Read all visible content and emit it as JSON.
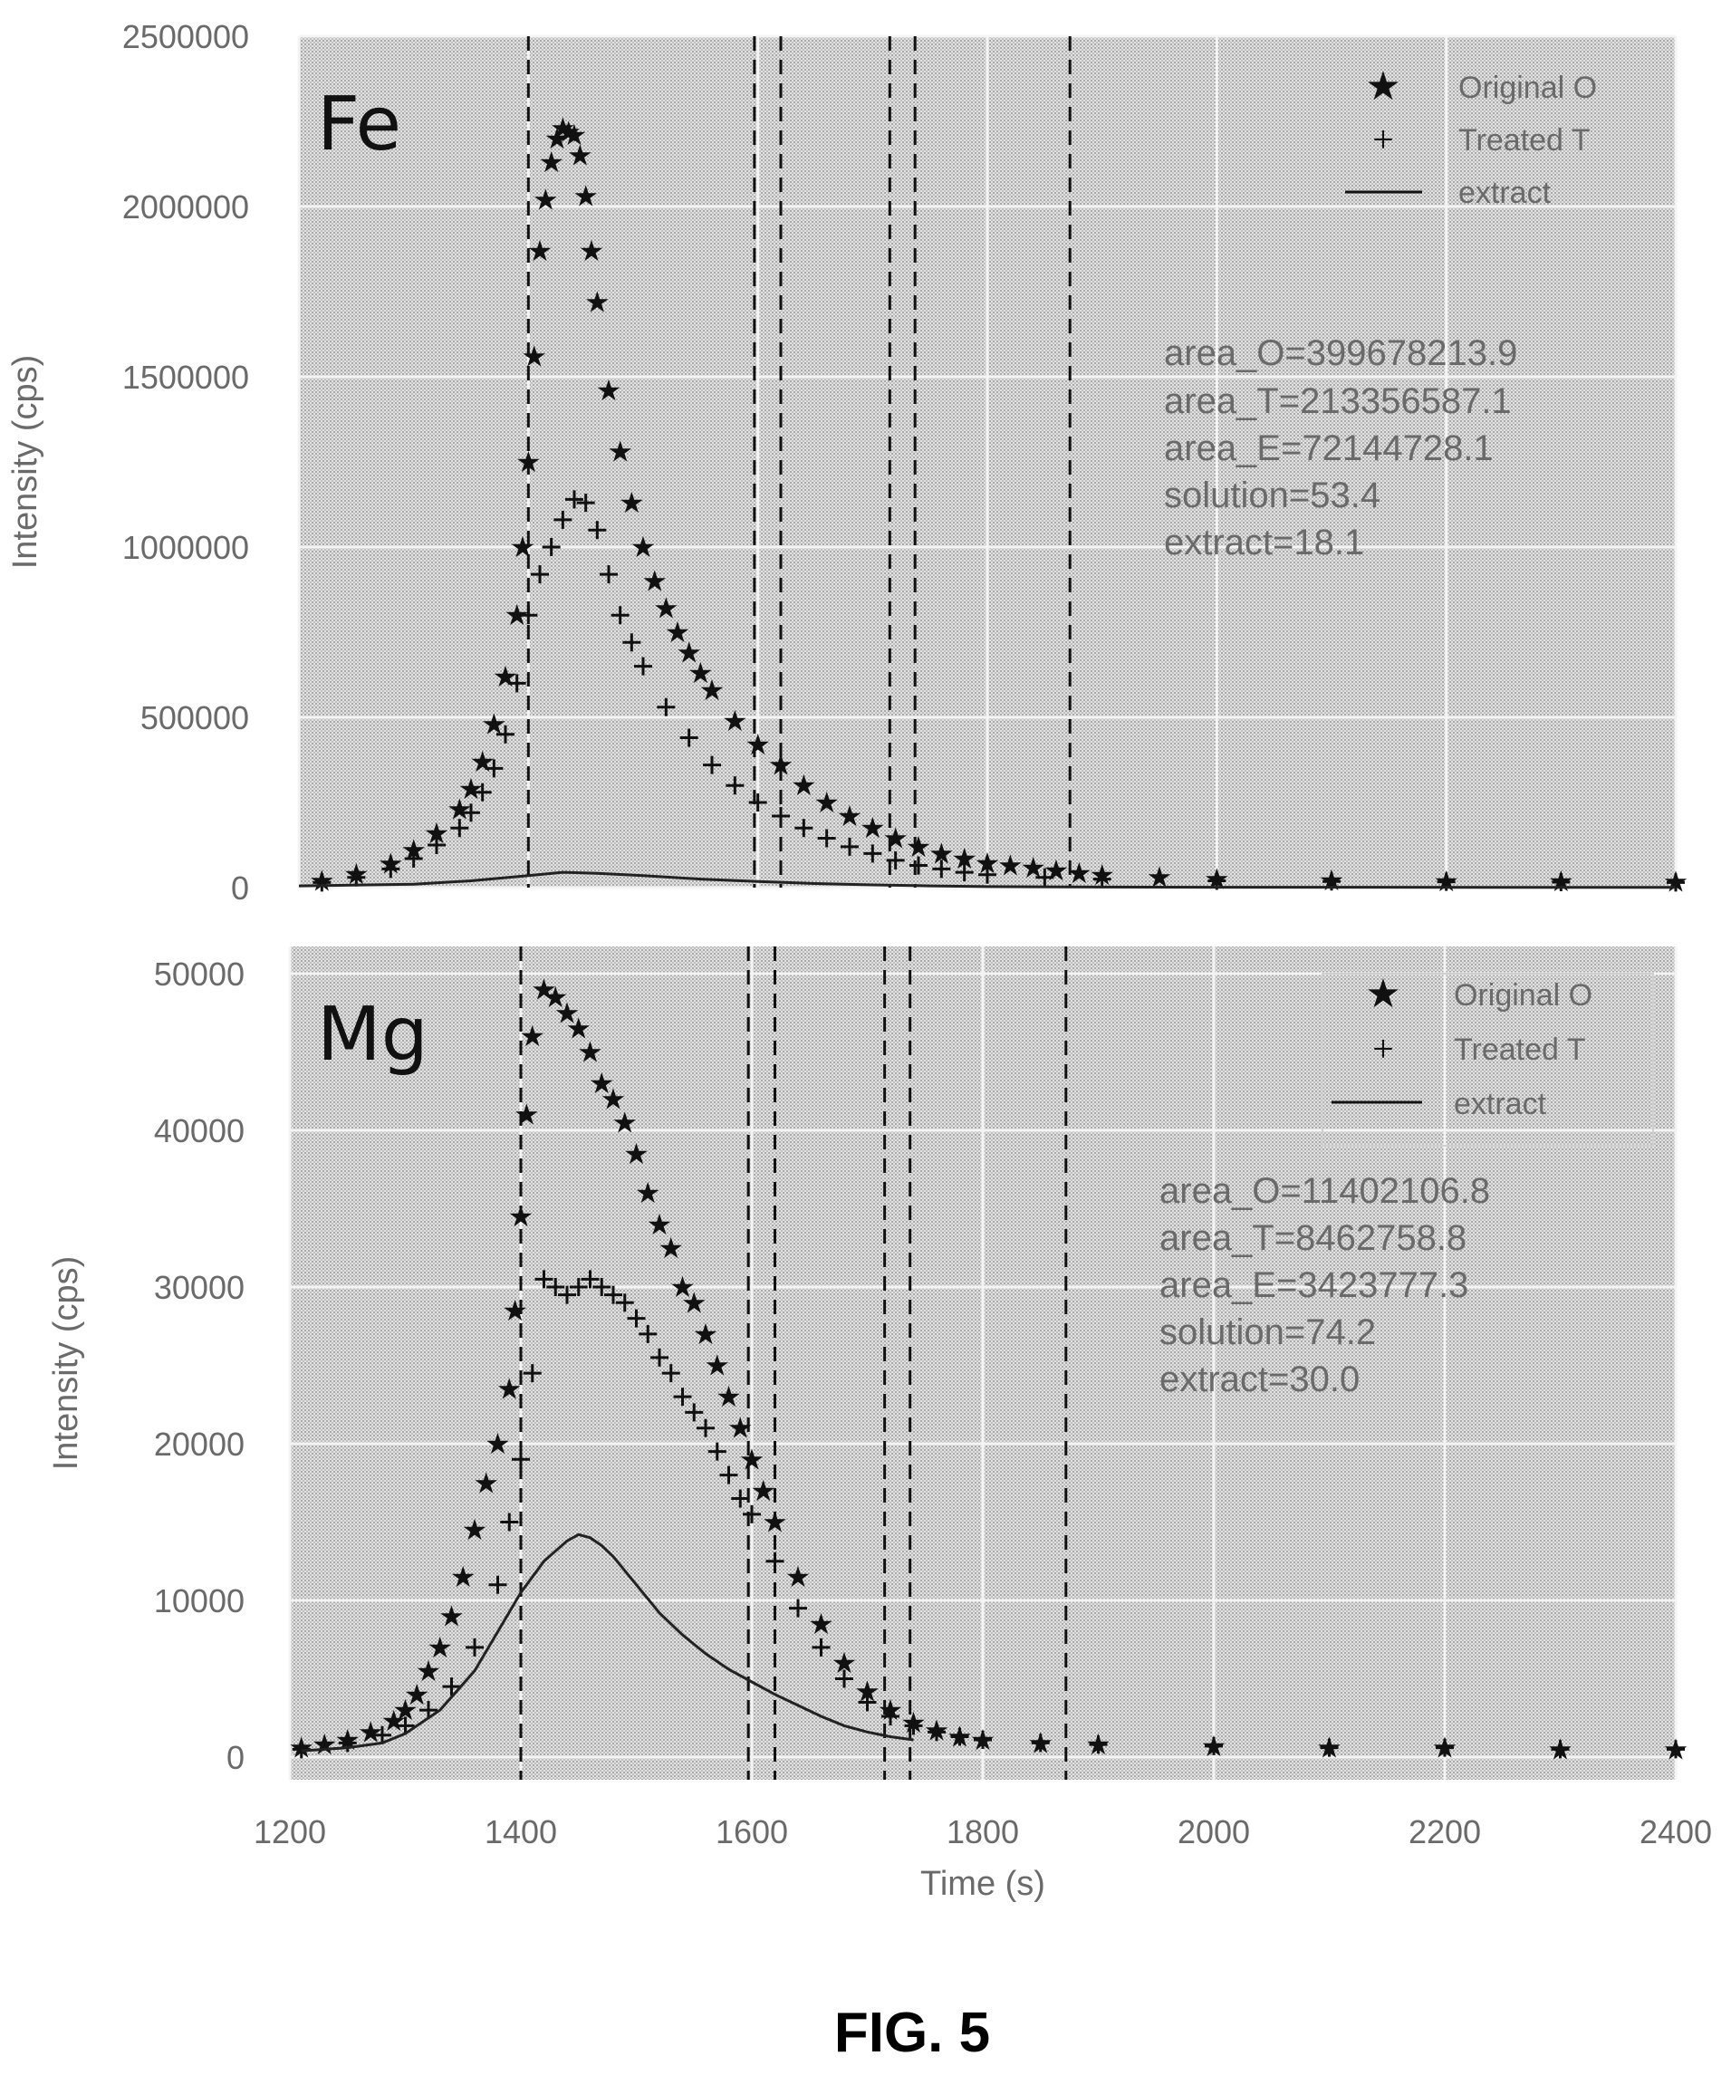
{
  "figure_caption": "FIG. 5",
  "shared_x_axis": {
    "label": "Time (s)",
    "ticks": [
      "1200",
      "1400",
      "1600",
      "1800",
      "2000",
      "2200",
      "2400"
    ]
  },
  "chart_data": [
    {
      "type": "scatter",
      "panel_label": "Fe",
      "xlabel": "Time (s)",
      "ylabel": "Intensity (cps)",
      "xlim": [
        1200,
        2400
      ],
      "ylim": [
        0,
        2500000
      ],
      "grid": true,
      "legend_position": "top-right",
      "yticks": [
        "0",
        "500000",
        "1000000",
        "1500000",
        "2000000",
        "2500000"
      ],
      "annotations": [
        "area_O=399678213.9",
        "area_T=213356587.1",
        "area_E=72144728.1",
        "solution=53.4",
        "extract=18.1"
      ],
      "vlines": [
        1400,
        1597,
        1620,
        1715,
        1737,
        1872
      ],
      "series": [
        {
          "name": "Original O",
          "marker": "star",
          "x": [
            1220,
            1250,
            1280,
            1300,
            1320,
            1340,
            1350,
            1360,
            1370,
            1380,
            1390,
            1395,
            1400,
            1405,
            1410,
            1415,
            1420,
            1425,
            1430,
            1435,
            1440,
            1445,
            1450,
            1455,
            1460,
            1470,
            1480,
            1490,
            1500,
            1510,
            1520,
            1530,
            1540,
            1550,
            1560,
            1580,
            1600,
            1620,
            1640,
            1660,
            1680,
            1700,
            1720,
            1740,
            1760,
            1780,
            1800,
            1820,
            1840,
            1860,
            1880,
            1900,
            1950,
            2000,
            2100,
            2200,
            2300,
            2400
          ],
          "y": [
            20000,
            40000,
            70000,
            110000,
            160000,
            230000,
            290000,
            370000,
            480000,
            620000,
            800000,
            1000000,
            1250000,
            1560000,
            1870000,
            2020000,
            2130000,
            2200000,
            2230000,
            2220000,
            2210000,
            2150000,
            2030000,
            1870000,
            1720000,
            1460000,
            1280000,
            1130000,
            1000000,
            900000,
            820000,
            750000,
            690000,
            630000,
            580000,
            490000,
            420000,
            360000,
            300000,
            250000,
            210000,
            175000,
            145000,
            120000,
            100000,
            85000,
            72000,
            65000,
            58000,
            50000,
            43000,
            37000,
            30000,
            25000,
            21000,
            19000,
            18000,
            17000
          ]
        },
        {
          "name": "Treated T",
          "marker": "plus",
          "x": [
            1220,
            1250,
            1280,
            1300,
            1320,
            1340,
            1350,
            1360,
            1370,
            1380,
            1390,
            1400,
            1410,
            1420,
            1430,
            1440,
            1450,
            1460,
            1470,
            1480,
            1490,
            1500,
            1520,
            1540,
            1560,
            1580,
            1600,
            1620,
            1640,
            1660,
            1680,
            1700,
            1720,
            1740,
            1760,
            1780,
            1800,
            1850,
            1900,
            2000,
            2100,
            2200,
            2300,
            2400
          ],
          "y": [
            15000,
            30000,
            55000,
            85000,
            125000,
            175000,
            220000,
            280000,
            350000,
            450000,
            600000,
            800000,
            920000,
            1000000,
            1080000,
            1140000,
            1130000,
            1050000,
            920000,
            800000,
            720000,
            650000,
            530000,
            440000,
            360000,
            300000,
            250000,
            210000,
            175000,
            145000,
            120000,
            100000,
            80000,
            65000,
            55000,
            45000,
            38000,
            30000,
            25000,
            20000,
            18000,
            17000,
            16000,
            15000
          ]
        },
        {
          "name": "extract",
          "marker": "line",
          "x": [
            1200,
            1300,
            1350,
            1400,
            1430,
            1460,
            1500,
            1550,
            1600,
            1650,
            1700,
            1750,
            1800,
            1900,
            2000,
            2400
          ],
          "y": [
            5000,
            10000,
            20000,
            35000,
            45000,
            42000,
            35000,
            25000,
            18000,
            12000,
            8000,
            5000,
            3000,
            1500,
            1000,
            500
          ]
        }
      ]
    },
    {
      "type": "scatter",
      "panel_label": "Mg",
      "xlabel": "Time (s)",
      "ylabel": "Intensity (cps)",
      "xlim": [
        1200,
        2400
      ],
      "ylim": [
        0,
        50000
      ],
      "grid": true,
      "legend_position": "top-right",
      "yticks": [
        "0",
        "10000",
        "20000",
        "30000",
        "40000",
        "50000"
      ],
      "annotations": [
        "area_O=11402106.8",
        "area_T=8462758.8",
        "area_E=3423777.3",
        "solution=74.2",
        "extract=30.0"
      ],
      "vlines": [
        1400,
        1597,
        1620,
        1715,
        1737,
        1872
      ],
      "series": [
        {
          "name": "Original O",
          "marker": "star",
          "x": [
            1210,
            1230,
            1250,
            1270,
            1290,
            1300,
            1310,
            1320,
            1330,
            1340,
            1350,
            1360,
            1370,
            1380,
            1390,
            1395,
            1400,
            1405,
            1410,
            1420,
            1430,
            1440,
            1450,
            1460,
            1470,
            1480,
            1490,
            1500,
            1510,
            1520,
            1530,
            1540,
            1550,
            1560,
            1570,
            1580,
            1590,
            1600,
            1610,
            1620,
            1640,
            1660,
            1680,
            1700,
            1720,
            1740,
            1760,
            1780,
            1800,
            1850,
            1900,
            2000,
            2100,
            2200,
            2300,
            2400
          ],
          "y": [
            600,
            800,
            1100,
            1600,
            2300,
            3000,
            4000,
            5500,
            7000,
            9000,
            11500,
            14500,
            17500,
            20000,
            23500,
            28500,
            34500,
            41000,
            46000,
            49000,
            48500,
            47500,
            46500,
            45000,
            43000,
            42000,
            40500,
            38500,
            36000,
            34000,
            32500,
            30000,
            29000,
            27000,
            25000,
            23000,
            21000,
            19000,
            17000,
            15000,
            11500,
            8500,
            6000,
            4200,
            3000,
            2200,
            1700,
            1300,
            1100,
            900,
            800,
            700,
            600,
            600,
            500,
            500
          ]
        },
        {
          "name": "Treated T",
          "marker": "plus",
          "x": [
            1210,
            1250,
            1280,
            1300,
            1320,
            1340,
            1360,
            1380,
            1390,
            1400,
            1410,
            1420,
            1430,
            1440,
            1450,
            1460,
            1470,
            1480,
            1490,
            1500,
            1510,
            1520,
            1530,
            1540,
            1550,
            1560,
            1570,
            1580,
            1590,
            1600,
            1620,
            1640,
            1660,
            1680,
            1700,
            1720,
            1740,
            1760,
            1780,
            1800,
            1850,
            1900,
            2000,
            2100,
            2200,
            2300,
            2400
          ],
          "y": [
            500,
            900,
            1400,
            2000,
            3000,
            4500,
            7000,
            11000,
            15000,
            19000,
            24500,
            30500,
            30000,
            29500,
            30000,
            30500,
            30000,
            29500,
            29000,
            28000,
            27000,
            25500,
            24500,
            23000,
            22000,
            21000,
            19500,
            18000,
            16500,
            15500,
            12500,
            9500,
            7000,
            5000,
            3500,
            2600,
            2000,
            1600,
            1300,
            1100,
            900,
            800,
            700,
            600,
            600,
            500,
            500
          ]
        },
        {
          "name": "extract",
          "marker": "line",
          "x": [
            1210,
            1250,
            1280,
            1300,
            1330,
            1360,
            1380,
            1400,
            1420,
            1440,
            1450,
            1460,
            1470,
            1480,
            1500,
            1520,
            1540,
            1560,
            1580,
            1600,
            1620,
            1640,
            1660,
            1680,
            1700,
            1720,
            1740
          ],
          "y": [
            400,
            600,
            900,
            1500,
            3000,
            5500,
            8000,
            10500,
            12500,
            13800,
            14200,
            14000,
            13500,
            12800,
            11000,
            9200,
            7800,
            6600,
            5600,
            4800,
            4000,
            3300,
            2600,
            2000,
            1600,
            1300,
            1100
          ]
        }
      ]
    }
  ]
}
